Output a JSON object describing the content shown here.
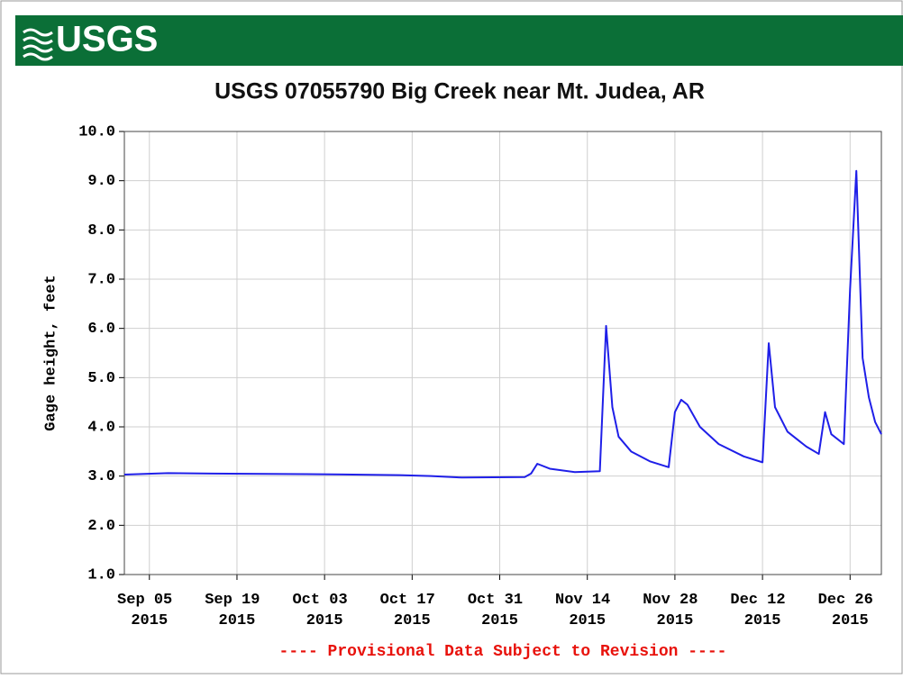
{
  "logo": "USGS",
  "chart_data": {
    "type": "line",
    "title": "USGS 07055790 Big Creek near Mt. Judea, AR",
    "y_label": "Gage height, feet",
    "note": "---- Provisional Data Subject to Revision ----",
    "color": "#1f1fe8",
    "grid": true,
    "x": [
      "2015-09-01",
      "2015-09-08",
      "2015-09-15",
      "2015-09-30",
      "2015-10-15",
      "2015-10-20",
      "2015-10-25",
      "2015-11-04",
      "2015-11-05",
      "2015-11-06",
      "2015-11-08",
      "2015-11-12",
      "2015-11-16",
      "2015-11-17",
      "2015-11-18",
      "2015-11-19",
      "2015-11-21",
      "2015-11-24",
      "2015-11-27",
      "2015-11-28",
      "2015-11-29",
      "2015-11-30",
      "2015-12-02",
      "2015-12-05",
      "2015-12-09",
      "2015-12-12",
      "2015-12-13",
      "2015-12-14",
      "2015-12-16",
      "2015-12-19",
      "2015-12-21",
      "2015-12-22",
      "2015-12-23",
      "2015-12-25",
      "2015-12-26",
      "2015-12-27",
      "2015-12-28",
      "2015-12-29",
      "2015-12-30",
      "2015-12-31"
    ],
    "values": [
      3.03,
      3.06,
      3.05,
      3.04,
      3.02,
      3.0,
      2.97,
      2.98,
      3.05,
      3.25,
      3.15,
      3.08,
      3.1,
      6.05,
      4.4,
      3.8,
      3.5,
      3.3,
      3.18,
      4.3,
      4.55,
      4.45,
      4.0,
      3.65,
      3.4,
      3.28,
      5.7,
      4.4,
      3.9,
      3.6,
      3.45,
      4.3,
      3.85,
      3.65,
      6.8,
      9.2,
      5.4,
      4.6,
      4.1,
      3.85
    ],
    "xlim": [
      "2015-09-01",
      "2015-12-31"
    ],
    "xticks": [
      {
        "value": "2015-09-05",
        "label": "Sep 05 2015"
      },
      {
        "value": "2015-09-19",
        "label": "Sep 19 2015"
      },
      {
        "value": "2015-10-03",
        "label": "Oct 03 2015"
      },
      {
        "value": "2015-10-17",
        "label": "Oct 17 2015"
      },
      {
        "value": "2015-10-31",
        "label": "Oct 31 2015"
      },
      {
        "value": "2015-11-14",
        "label": "Nov 14 2015"
      },
      {
        "value": "2015-11-28",
        "label": "Nov 28 2015"
      },
      {
        "value": "2015-12-12",
        "label": "Dec 12 2015"
      },
      {
        "value": "2015-12-26",
        "label": "Dec 26 2015"
      }
    ],
    "ylim": [
      1,
      10
    ],
    "yticks": [
      {
        "value": 1,
        "label": "1.0"
      },
      {
        "value": 2,
        "label": "2.0"
      },
      {
        "value": 3,
        "label": "3.0"
      },
      {
        "value": 4,
        "label": "4.0"
      },
      {
        "value": 5,
        "label": "5.0"
      },
      {
        "value": 6,
        "label": "6.0"
      },
      {
        "value": 7,
        "label": "7.0"
      },
      {
        "value": 8,
        "label": "8.0"
      },
      {
        "value": 9,
        "label": "9.0"
      },
      {
        "value": 10,
        "label": "10.0"
      }
    ]
  }
}
